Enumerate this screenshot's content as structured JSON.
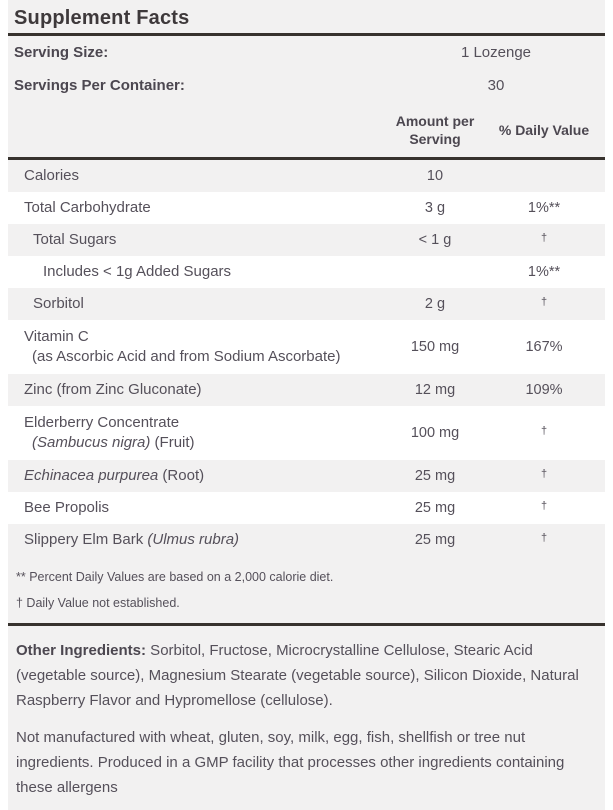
{
  "title": "Supplement Facts",
  "serving_info": [
    {
      "label": "Serving Size:",
      "value": "1 Lozenge"
    },
    {
      "label": "Servings Per Container:",
      "value": "30"
    }
  ],
  "columns": {
    "amount": "Amount per Serving",
    "daily": "% Daily Value"
  },
  "table": {
    "rows": [
      {
        "indent": 0,
        "shaded": true,
        "label": [
          {
            "text": "Calories"
          }
        ],
        "amount": "10",
        "daily": ""
      },
      {
        "indent": 0,
        "shaded": false,
        "label": [
          {
            "text": "Total Carbohydrate"
          }
        ],
        "amount": "3 g",
        "daily": "1%**"
      },
      {
        "indent": 1,
        "shaded": true,
        "label": [
          {
            "text": "Total Sugars"
          }
        ],
        "amount": "< 1 g",
        "daily": "†",
        "daily_sup": true
      },
      {
        "indent": 2,
        "shaded": false,
        "label": [
          {
            "text": "Includes < 1g Added Sugars"
          }
        ],
        "amount": "",
        "daily": "1%**"
      },
      {
        "indent": 1,
        "shaded": true,
        "label": [
          {
            "text": "Sorbitol"
          }
        ],
        "amount": "2 g",
        "daily": "†",
        "daily_sup": true
      },
      {
        "indent": 0,
        "shaded": false,
        "label": [
          {
            "text": "Vitamin C"
          }
        ],
        "sublabel": [
          {
            "text": "(as Ascorbic Acid and from Sodium Ascorbate)"
          }
        ],
        "amount": "150 mg",
        "daily": "167%"
      },
      {
        "indent": 0,
        "shaded": true,
        "label": [
          {
            "text": "Zinc (from Zinc Gluconate)"
          }
        ],
        "amount": "12 mg",
        "daily": "109%"
      },
      {
        "indent": 0,
        "shaded": false,
        "label": [
          {
            "text": "Elderberry Concentrate"
          }
        ],
        "sublabel": [
          {
            "text": "(Sambucus nigra)",
            "italic": true
          },
          {
            "text": " (Fruit)"
          }
        ],
        "amount": "100 mg",
        "daily": "†",
        "daily_sup": true
      },
      {
        "indent": 0,
        "shaded": true,
        "label": [
          {
            "text": "Echinacea purpurea",
            "italic": true
          },
          {
            "text": " (Root)"
          }
        ],
        "amount": "25 mg",
        "daily": "†",
        "daily_sup": true
      },
      {
        "indent": 0,
        "shaded": false,
        "label": [
          {
            "text": "Bee Propolis"
          }
        ],
        "amount": "25 mg",
        "daily": "†",
        "daily_sup": true
      },
      {
        "indent": 0,
        "shaded": true,
        "label": [
          {
            "text": "Slippery Elm Bark "
          },
          {
            "text": "(Ulmus rubra)",
            "italic": true
          }
        ],
        "amount": "25 mg",
        "daily": "†",
        "daily_sup": true
      }
    ]
  },
  "footnotes": [
    "** Percent Daily Values are based on a 2,000 calorie diet.",
    "† Daily Value not established."
  ],
  "other_ingredients": {
    "label": "Other Ingredients:",
    "text": " Sorbitol, Fructose, Microcrystalline Cellulose, Stearic Acid (vegetable source), Magnesium Stearate (vegetable source), Silicon Dioxide, Natural Raspberry Flavor and Hypromellose (cellulose)."
  },
  "allergen_note": "Not manufactured with wheat, gluten, soy, milk, egg, fish, shellfish or tree nut ingredients. Produced in a GMP facility that processes other ingredients containing these allergens",
  "colors": {
    "background_gray": "#f2f1f1",
    "row_white": "#ffffff",
    "rule_dark": "#37322e",
    "text": "#55505a",
    "text_bold": "#4c4750"
  }
}
